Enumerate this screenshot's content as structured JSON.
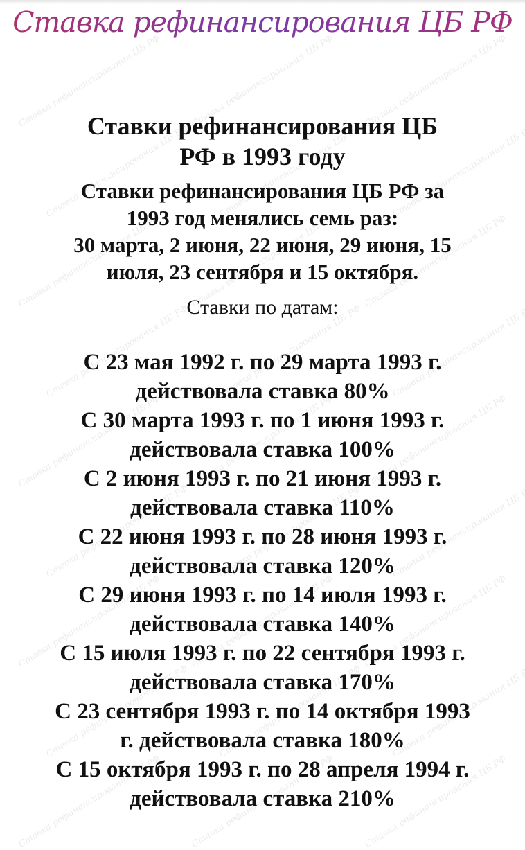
{
  "banner": "Ставка рефинансирования ЦБ РФ",
  "watermark": "Ставка рефинансирования ЦБ РФ",
  "title_lines": [
    "Ставки рефинансирования ЦБ",
    "РФ в 1993 году"
  ],
  "subtitle_lines": [
    "Ставки рефинансирования ЦБ РФ за",
    "1993 год менялись семь раз:",
    "30 марта, 2 июня, 22 июня, 29 июня, 15",
    "июля, 23 сентября и 15 октября."
  ],
  "dates_label": "Ставки по датам:",
  "entries": [
    [
      "С 23 мая 1992 г. по 29 марта 1993 г.",
      "действовала ставка 80%"
    ],
    [
      "С 30 марта 1993 г. по 1 июня 1993 г.",
      "действовала ставка 100%"
    ],
    [
      "С 2 июня 1993 г. по 21 июня 1993 г.",
      "действовала ставка 110%"
    ],
    [
      "С 22 июня 1993 г. по 28 июня 1993 г.",
      "действовала ставка 120%"
    ],
    [
      "С 29 июня 1993 г. по 14 июля 1993 г.",
      "действовала ставка 140%"
    ],
    [
      "С 15 июля 1993 г. по 22 сентября 1993 г.",
      "действовала ставка 170%"
    ],
    [
      "С 23 сентября 1993 г. по 14 октября 1993",
      "г. действовала ставка 180%"
    ],
    [
      "С 15 октября 1993 г. по 28 апреля 1994 г.",
      "действовала ставка 210%"
    ]
  ]
}
